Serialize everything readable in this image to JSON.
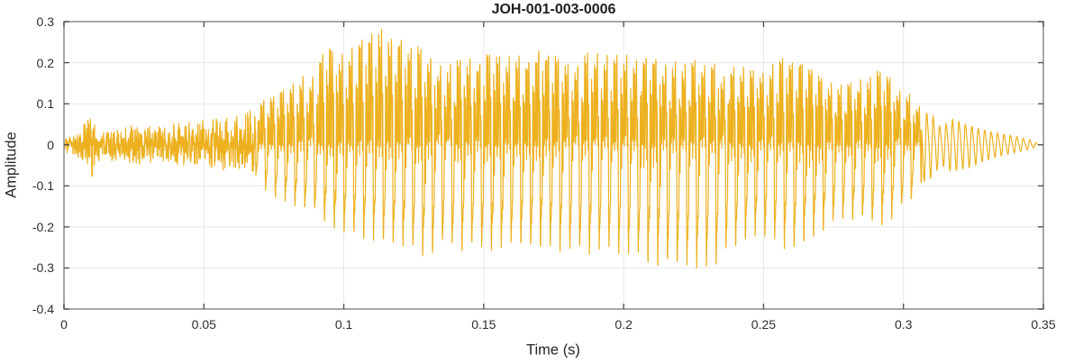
{
  "chart_data": {
    "type": "line",
    "subtype": "audio-waveform",
    "title": "JOH-001-003-0006",
    "xlabel": "Time (s)",
    "ylabel": "Amplitude",
    "xlim": [
      0,
      0.35
    ],
    "ylim": [
      -0.4,
      0.3
    ],
    "xtick_values": [
      0,
      0.05,
      0.1,
      0.15,
      0.2,
      0.25,
      0.3,
      0.35
    ],
    "xtick_labels": [
      "0",
      "0.05",
      "0.1",
      "0.15",
      "0.2",
      "0.25",
      "0.3",
      "0.35"
    ],
    "ytick_values": [
      0.3,
      0.2,
      0.1,
      0,
      -0.1,
      -0.2,
      -0.3,
      -0.4
    ],
    "ytick_labels": [
      "0.3",
      "0.2",
      "0.1",
      "0",
      "-0.1",
      "-0.2",
      "-0.3",
      "-0.4"
    ],
    "grid": true,
    "legend_position": "none",
    "line_color": "#EDB120",
    "axis_color": "#8A8A8A",
    "tick_color": "#4A4A4A",
    "grid_color": "#E7E7E7",
    "text_color": "#262626",
    "signal": {
      "description": "speech-like waveform: low-level noise until ~0.068 s, strong voiced segment peaking +0.285 near t=0.113 and -0.31 near t=0.22, decaying oscillatory tail after 0.306 s, ends ~0.348 s",
      "duration_s": 0.348,
      "f0_hz": 286,
      "noise_end_s": 0.0685,
      "voiced_end_s": 0.3065,
      "envelope": [
        [
          0.0,
          0.018,
          -0.018
        ],
        [
          0.004,
          0.028,
          -0.028
        ],
        [
          0.008,
          0.085,
          -0.055
        ],
        [
          0.0105,
          0.06,
          -0.09
        ],
        [
          0.0135,
          0.032,
          -0.036
        ],
        [
          0.018,
          0.038,
          -0.04
        ],
        [
          0.024,
          0.05,
          -0.05
        ],
        [
          0.03,
          0.045,
          -0.048
        ],
        [
          0.036,
          0.05,
          -0.05
        ],
        [
          0.042,
          0.055,
          -0.055
        ],
        [
          0.048,
          0.06,
          -0.055
        ],
        [
          0.054,
          0.068,
          -0.06
        ],
        [
          0.06,
          0.075,
          -0.065
        ],
        [
          0.065,
          0.085,
          -0.07
        ],
        [
          0.0685,
          0.1,
          -0.08
        ],
        [
          0.072,
          0.11,
          -0.11
        ],
        [
          0.076,
          0.12,
          -0.13
        ],
        [
          0.08,
          0.14,
          -0.14
        ],
        [
          0.085,
          0.17,
          -0.16
        ],
        [
          0.09,
          0.19,
          -0.17
        ],
        [
          0.094,
          0.24,
          -0.19
        ],
        [
          0.098,
          0.21,
          -0.21
        ],
        [
          0.103,
          0.245,
          -0.22
        ],
        [
          0.108,
          0.26,
          -0.23
        ],
        [
          0.113,
          0.285,
          -0.235
        ],
        [
          0.118,
          0.25,
          -0.24
        ],
        [
          0.123,
          0.26,
          -0.25
        ],
        [
          0.128,
          0.23,
          -0.27
        ],
        [
          0.131,
          0.22,
          -0.275
        ],
        [
          0.136,
          0.21,
          -0.25
        ],
        [
          0.141,
          0.205,
          -0.26
        ],
        [
          0.146,
          0.21,
          -0.25
        ],
        [
          0.151,
          0.22,
          -0.26
        ],
        [
          0.156,
          0.215,
          -0.25
        ],
        [
          0.161,
          0.22,
          -0.245
        ],
        [
          0.166,
          0.21,
          -0.25
        ],
        [
          0.171,
          0.24,
          -0.25
        ],
        [
          0.176,
          0.22,
          -0.26
        ],
        [
          0.181,
          0.21,
          -0.26
        ],
        [
          0.186,
          0.22,
          -0.27
        ],
        [
          0.191,
          0.235,
          -0.26
        ],
        [
          0.196,
          0.22,
          -0.26
        ],
        [
          0.201,
          0.23,
          -0.27
        ],
        [
          0.206,
          0.21,
          -0.28
        ],
        [
          0.211,
          0.21,
          -0.29
        ],
        [
          0.216,
          0.215,
          -0.305
        ],
        [
          0.221,
          0.21,
          -0.31
        ],
        [
          0.226,
          0.205,
          -0.3
        ],
        [
          0.231,
          0.2,
          -0.305
        ],
        [
          0.236,
          0.19,
          -0.27
        ],
        [
          0.241,
          0.195,
          -0.25
        ],
        [
          0.246,
          0.18,
          -0.22
        ],
        [
          0.251,
          0.19,
          -0.23
        ],
        [
          0.256,
          0.215,
          -0.25
        ],
        [
          0.261,
          0.22,
          -0.26
        ],
        [
          0.266,
          0.19,
          -0.23
        ],
        [
          0.271,
          0.16,
          -0.21
        ],
        [
          0.276,
          0.15,
          -0.19
        ],
        [
          0.281,
          0.15,
          -0.18
        ],
        [
          0.286,
          0.17,
          -0.19
        ],
        [
          0.291,
          0.18,
          -0.2
        ],
        [
          0.296,
          0.16,
          -0.18
        ],
        [
          0.301,
          0.13,
          -0.15
        ],
        [
          0.3065,
          0.1,
          -0.1
        ],
        [
          0.31,
          0.09,
          -0.085
        ],
        [
          0.3135,
          0.05,
          -0.05
        ],
        [
          0.317,
          0.075,
          -0.07
        ],
        [
          0.323,
          0.06,
          -0.06
        ],
        [
          0.328,
          0.045,
          -0.045
        ],
        [
          0.334,
          0.035,
          -0.03
        ],
        [
          0.34,
          0.025,
          -0.02
        ],
        [
          0.345,
          0.015,
          -0.012
        ],
        [
          0.348,
          0.004,
          -0.004
        ]
      ]
    }
  }
}
